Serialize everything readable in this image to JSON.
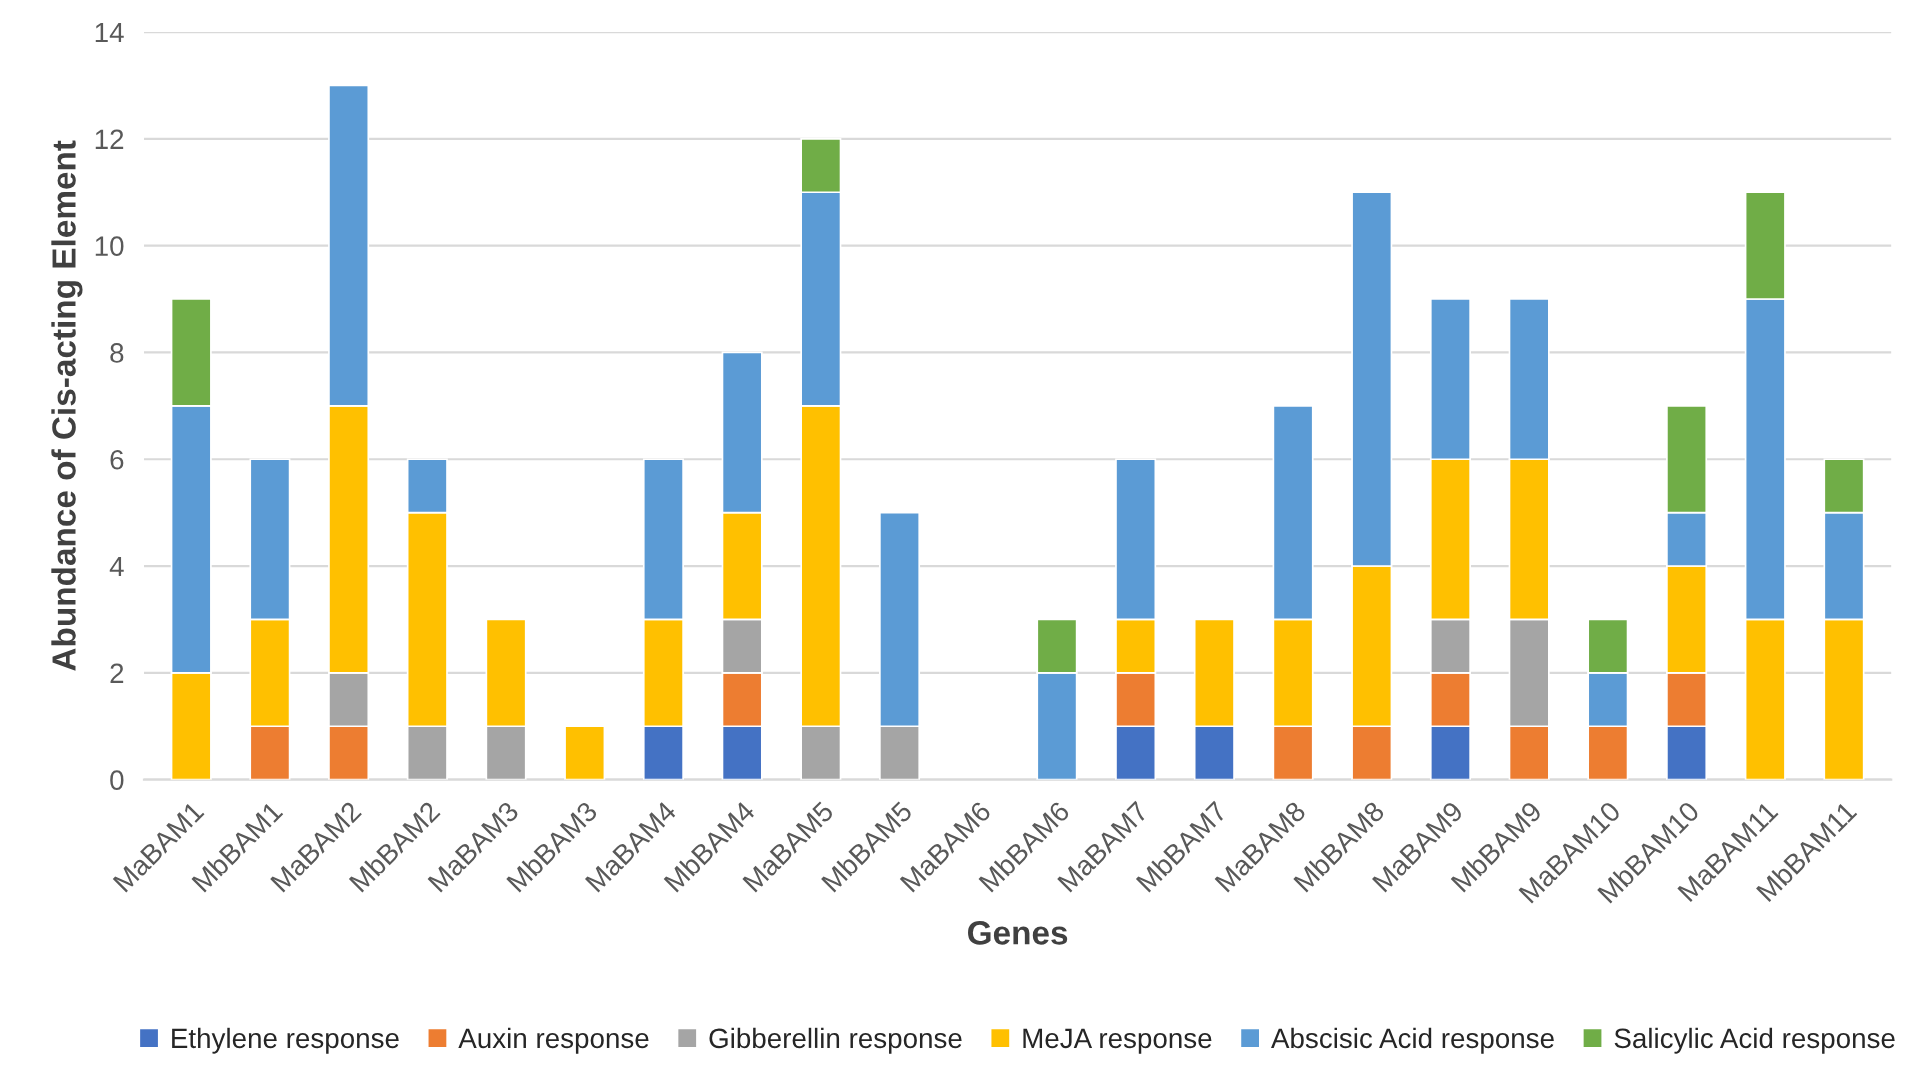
{
  "chart_data": {
    "type": "bar",
    "stacked": true,
    "xlabel": "Genes",
    "ylabel": "Abundance of Cis-acting Element",
    "categories": [
      "MaBAM1",
      "MbBAM1",
      "MaBAM2",
      "MbBAM2",
      "MaBAM3",
      "MbBAM3",
      "MaBAM4",
      "MbBAM4",
      "MaBAM5",
      "MbBAM5",
      "MaBAM6",
      "MbBAM6",
      "MaBAM7",
      "MbBAM7",
      "MaBAM8",
      "MbBAM8",
      "MaBAM9",
      "MbBAM9",
      "MaBAM10",
      "MbBAM10",
      "MaBAM11",
      "MbBAM11"
    ],
    "series": [
      {
        "name": "Ethylene response",
        "color": "#4472c4",
        "values": [
          null,
          null,
          null,
          null,
          null,
          null,
          1,
          1,
          null,
          null,
          null,
          null,
          1,
          1,
          null,
          null,
          1,
          null,
          null,
          1,
          null,
          null
        ]
      },
      {
        "name": "Auxin response",
        "color": "#ed7d31",
        "values": [
          null,
          1,
          1,
          null,
          null,
          null,
          null,
          1,
          null,
          null,
          null,
          null,
          1,
          null,
          1,
          1,
          1,
          1,
          1,
          1,
          null,
          null
        ]
      },
      {
        "name": "Gibberellin response",
        "color": "#a5a5a5",
        "values": [
          null,
          null,
          1,
          1,
          1,
          null,
          null,
          1,
          1,
          1,
          null,
          null,
          null,
          null,
          null,
          null,
          1,
          2,
          null,
          null,
          null,
          null
        ]
      },
      {
        "name": "MeJA response",
        "color": "#ffc000",
        "values": [
          2,
          2,
          5,
          4,
          2,
          1,
          2,
          2,
          6,
          null,
          null,
          null,
          1,
          2,
          2,
          3,
          3,
          3,
          null,
          2,
          3,
          3
        ]
      },
      {
        "name": "Abscisic Acid response",
        "color": "#5b9bd5",
        "values": [
          5,
          3,
          6,
          1,
          null,
          null,
          3,
          3,
          4,
          4,
          null,
          2,
          3,
          null,
          4,
          7,
          3,
          3,
          1,
          1,
          6,
          2
        ]
      },
      {
        "name": "Salicylic Acid response",
        "color": "#70ad47",
        "values": [
          2,
          null,
          null,
          null,
          null,
          null,
          null,
          null,
          1,
          null,
          null,
          1,
          null,
          null,
          null,
          null,
          null,
          null,
          1,
          2,
          2,
          1
        ]
      }
    ],
    "ylim": [
      0,
      14
    ],
    "yticks": [
      0,
      2,
      4,
      6,
      8,
      10,
      12,
      14
    ],
    "grid": "y",
    "legend": "bottom"
  }
}
